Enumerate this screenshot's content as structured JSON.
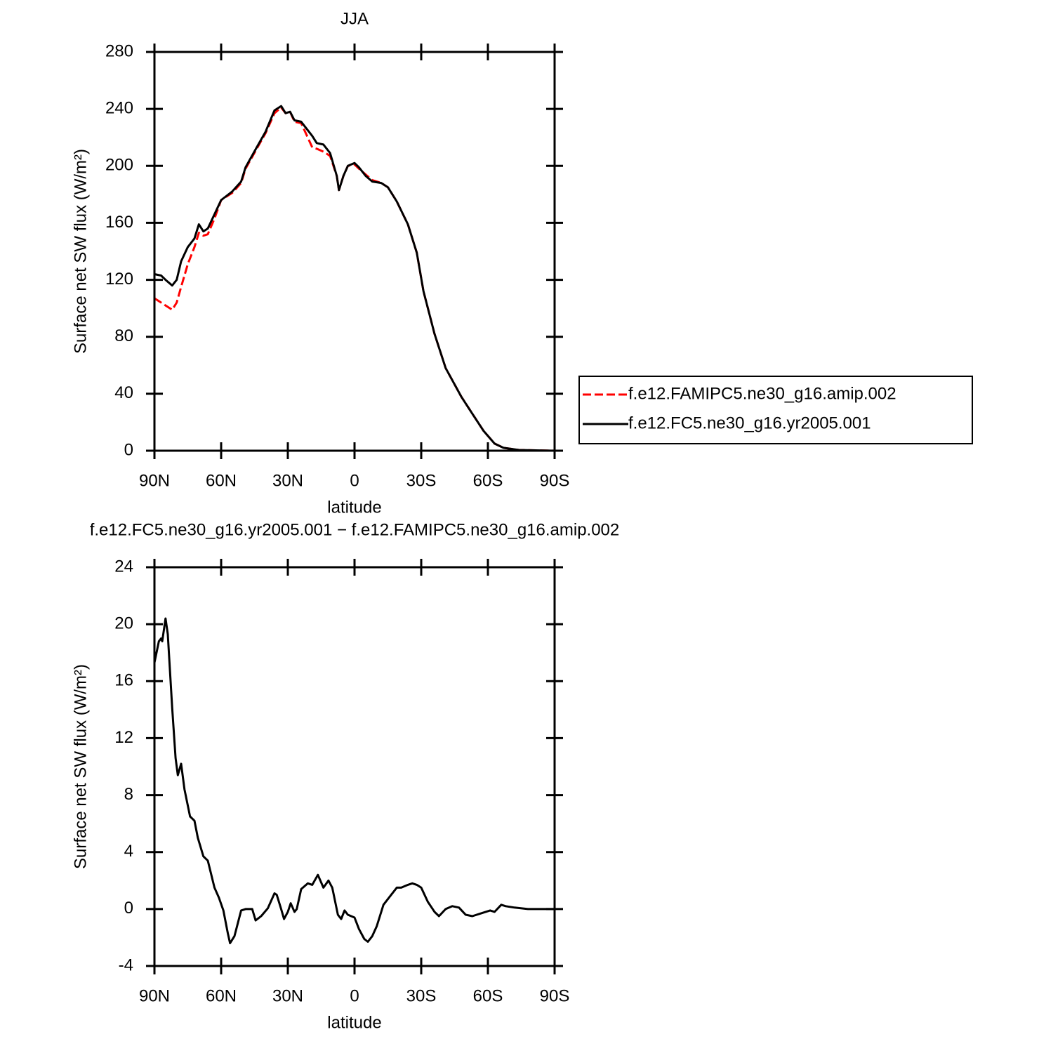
{
  "chart_data": [
    {
      "type": "line",
      "title": "JJA",
      "xlabel": "latitude",
      "ylabel": "Surface net SW flux (W/m²)",
      "x": [
        90,
        87,
        85,
        82,
        80,
        78,
        75,
        72,
        70,
        68,
        66,
        63,
        60,
        55,
        51,
        49,
        44,
        40,
        36,
        33,
        31,
        29,
        27,
        24,
        19,
        17,
        14,
        11,
        8,
        7,
        5,
        3,
        0,
        -2,
        -5,
        -8,
        -12,
        -15,
        -19,
        -24,
        -28,
        -31,
        -36,
        -41,
        -48,
        -53,
        -58,
        -63,
        -67,
        -74,
        -90
      ],
      "series": [
        {
          "name": "f.e12.FAMIPC5.ne30_g16.amip.002",
          "color": "#ff0000",
          "line_style": "dashed",
          "values": [
            107,
            104,
            102,
            99,
            104,
            115,
            131,
            143,
            153,
            151,
            152,
            163,
            176,
            181,
            188,
            198,
            212,
            223,
            237,
            241,
            237,
            238,
            231,
            230,
            213,
            212,
            210,
            207,
            193,
            183,
            193,
            200,
            201,
            198,
            194,
            190,
            188,
            185,
            175,
            159,
            139,
            112,
            82,
            58,
            38,
            26,
            14,
            5,
            2,
            0.5,
            0
          ]
        },
        {
          "name": "f.e12.FC5.ne30_g16.yr2005.001",
          "color": "#000000",
          "line_style": "solid",
          "values": [
            124,
            123,
            120,
            116,
            120,
            133,
            143,
            149,
            159,
            154,
            156,
            166,
            176,
            182,
            189,
            199,
            213,
            224,
            239,
            242,
            237,
            238,
            232,
            231,
            221,
            216,
            215,
            209,
            193,
            183,
            193,
            200,
            202,
            199,
            193,
            189,
            188,
            185,
            175,
            159,
            139,
            112,
            82,
            58,
            38,
            26,
            14,
            5,
            2,
            0.5,
            0
          ]
        }
      ],
      "xlim": [
        90,
        -90
      ],
      "xticks": [
        {
          "value": 90,
          "label": "90N"
        },
        {
          "value": 60,
          "label": "60N"
        },
        {
          "value": 30,
          "label": "30N"
        },
        0,
        {
          "value": -30,
          "label": "30S"
        },
        {
          "value": -60,
          "label": "60S"
        },
        {
          "value": -90,
          "label": "90S"
        }
      ],
      "ylim": [
        0,
        280
      ],
      "yticks": [
        0,
        40,
        80,
        120,
        160,
        200,
        240,
        280
      ],
      "legend": "right"
    },
    {
      "type": "line",
      "title": "f.e12.FC5.ne30_g16.yr2005.001 − f.e12.FAMIPC5.ne30_g16.amip.002",
      "xlabel": "latitude",
      "ylabel": "Surface net SW flux (W/m²)",
      "x": [
        90,
        88,
        87,
        86.5,
        85,
        84,
        82,
        80.5,
        79.5,
        78,
        76.5,
        74,
        72,
        70.5,
        68,
        66,
        63,
        61,
        59,
        57,
        56,
        54,
        51,
        49,
        46,
        44.5,
        42,
        39,
        36,
        35,
        33,
        31.7,
        30,
        28.7,
        27,
        26,
        24,
        21,
        19,
        16.5,
        14,
        11.7,
        10,
        7.5,
        6,
        4.5,
        3,
        0,
        -2,
        -4.4,
        -6,
        -8,
        -10,
        -13,
        -16,
        -19,
        -21,
        -24,
        -26,
        -28,
        -30,
        -33,
        -36,
        -38,
        -41,
        -44,
        -47,
        -50,
        -53,
        -57,
        -61,
        -63,
        -66,
        -68,
        -72,
        -78,
        -90
      ],
      "series": [
        {
          "name": "difference",
          "color": "#000000",
          "line_style": "solid",
          "values": [
            17.3,
            18.8,
            19.0,
            18.8,
            20.4,
            19.3,
            14.1,
            10.6,
            9.4,
            10.2,
            8.4,
            6.5,
            6.2,
            5.0,
            3.7,
            3.4,
            1.5,
            0.8,
            -0.1,
            -1.7,
            -2.4,
            -1.9,
            -0.1,
            0,
            0,
            -0.8,
            -0.5,
            0.05,
            1.1,
            1.0,
            0,
            -0.7,
            -0.2,
            0.4,
            -0.2,
            0,
            1.4,
            1.8,
            1.7,
            2.4,
            1.5,
            2.0,
            1.5,
            -0.4,
            -0.7,
            -0.1,
            -0.4,
            -0.6,
            -1.4,
            -2.1,
            -2.3,
            -1.9,
            -1.2,
            0.3,
            0.9,
            1.5,
            1.5,
            1.7,
            1.8,
            1.7,
            1.5,
            0.5,
            -0.2,
            -0.5,
            0,
            0.2,
            0.1,
            -0.4,
            -0.5,
            -0.3,
            -0.1,
            -0.2,
            0.3,
            0.2,
            0.1,
            0,
            0
          ]
        }
      ],
      "xlim": [
        90,
        -90
      ],
      "xticks": [
        {
          "value": 90,
          "label": "90N"
        },
        {
          "value": 60,
          "label": "60N"
        },
        {
          "value": 30,
          "label": "30N"
        },
        0,
        {
          "value": -30,
          "label": "30S"
        },
        {
          "value": -60,
          "label": "60S"
        },
        {
          "value": -90,
          "label": "90S"
        }
      ],
      "ylim": [
        -4,
        24
      ],
      "yticks": [
        -4,
        0,
        4,
        8,
        12,
        16,
        20,
        24
      ]
    }
  ]
}
